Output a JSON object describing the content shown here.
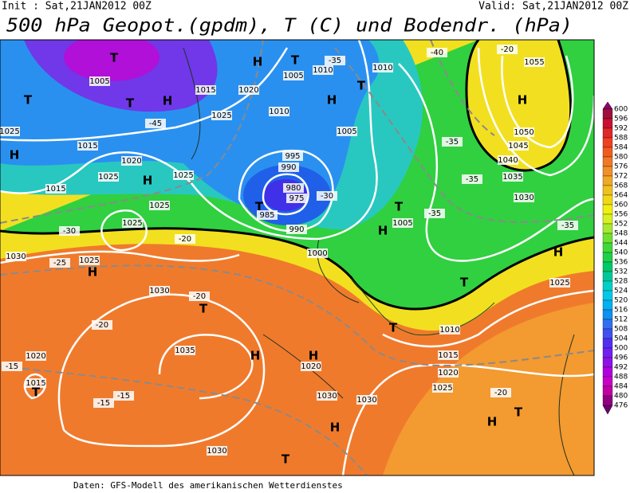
{
  "header": {
    "init": "Init : Sat,21JAN2012 00Z",
    "valid": "Valid: Sat,21JAN2012 00Z",
    "title": "500 hPa Geopot.(gpdm), T (C) und Bodendr. (hPa)"
  },
  "footer": "Daten: GFS-Modell des amerikanischen Wetterdienstes",
  "legend": {
    "levels": [
      600,
      596,
      592,
      588,
      584,
      580,
      576,
      572,
      568,
      564,
      560,
      556,
      552,
      548,
      544,
      540,
      536,
      532,
      528,
      524,
      520,
      516,
      512,
      508,
      504,
      500,
      496,
      492,
      488,
      484,
      480,
      476
    ],
    "colors": [
      "#a0103c",
      "#c81030",
      "#e02828",
      "#f04020",
      "#f05c20",
      "#f07828",
      "#f09028",
      "#f0a828",
      "#f0c020",
      "#f0d818",
      "#f0f010",
      "#d8f020",
      "#a8e830",
      "#70e030",
      "#40d838",
      "#20d048",
      "#00c868",
      "#00c898",
      "#00d0c8",
      "#00c8e8",
      "#00b0f0",
      "#1090f0",
      "#3070f0",
      "#4050f0",
      "#5030f0",
      "#7020f0",
      "#9010e8",
      "#b000e0",
      "#c800c8",
      "#c000a0",
      "#900080"
    ]
  },
  "map_labels": [
    "T",
    "H",
    "T",
    "1005",
    "1015",
    "1020",
    "H",
    "T",
    "T",
    "H",
    "T",
    "1010",
    "1005",
    "1010",
    "1025",
    "1015",
    "1025",
    "-45",
    "1010",
    "1005",
    "H",
    "1020",
    "1025",
    "H",
    "1025",
    "995",
    "990",
    "980",
    "975",
    "T",
    "985",
    "990",
    "H",
    "1005",
    "T",
    "1015",
    "1030",
    "1025",
    "H",
    "1030",
    "T",
    "H",
    "1035",
    "H",
    "1020",
    "1015",
    "T",
    "1030",
    "1030",
    "1025",
    "1030",
    "H",
    "T",
    "H",
    "1055",
    "1050",
    "1045",
    "1040",
    "1035",
    "1030",
    "H",
    "1025",
    "T",
    "1020",
    "1015",
    "1010",
    "T",
    "H",
    "T",
    "-20",
    "-35",
    "-40",
    "-20",
    "-35",
    "-35",
    "-35",
    "-35",
    "-30",
    "-30",
    "-25",
    "-20",
    "-15",
    "-15",
    "-20",
    "-20",
    "-15",
    "1000",
    "1020",
    "1025",
    "1025"
  ]
}
